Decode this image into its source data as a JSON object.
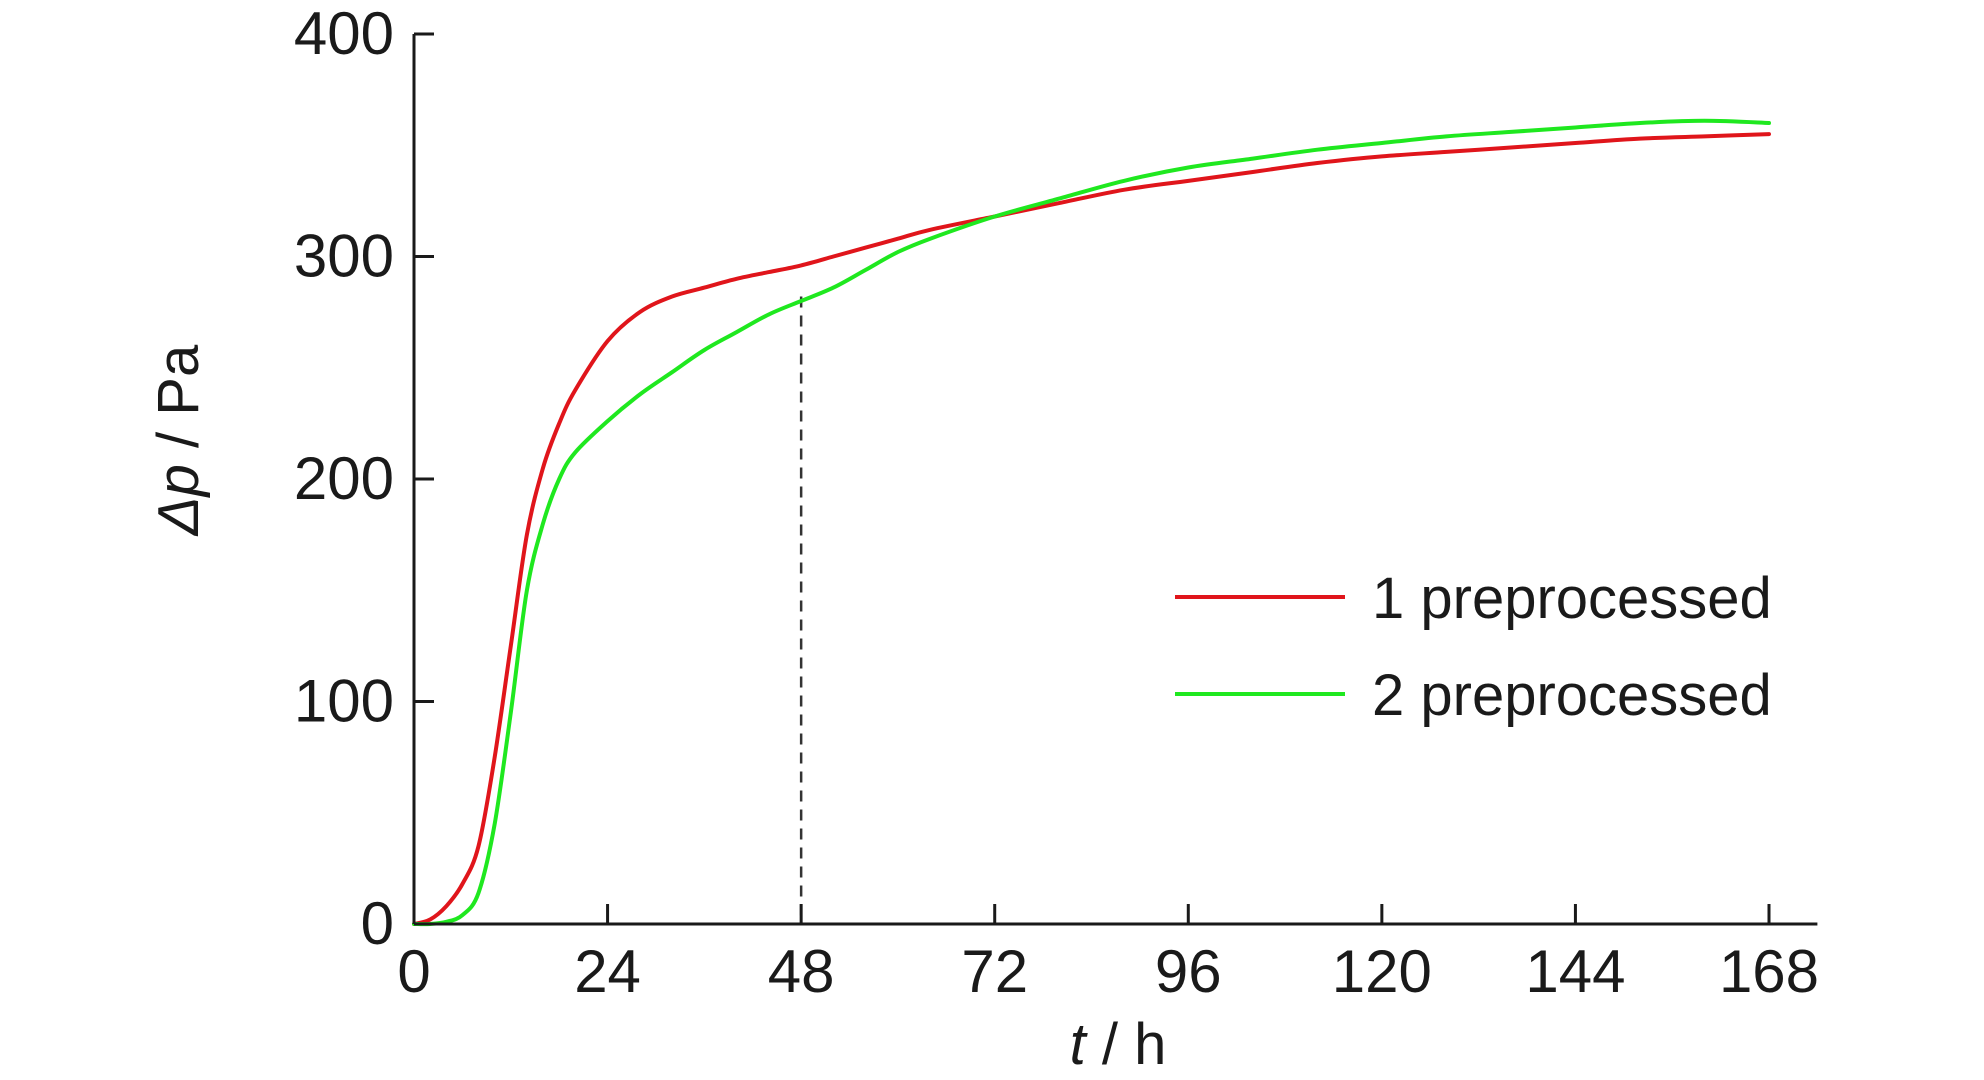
{
  "chart_data": {
    "type": "line",
    "xlabel": {
      "var": "t",
      "unit": " / h"
    },
    "ylabel": {
      "var": "Δp",
      "unit": " / Pa"
    },
    "xlim": [
      0,
      174
    ],
    "ylim": [
      0,
      400
    ],
    "xticks": [
      0,
      24,
      48,
      72,
      96,
      120,
      144,
      168
    ],
    "yticks": [
      0,
      100,
      200,
      300,
      400
    ],
    "grid": false,
    "legend_position": "right",
    "reference_line": {
      "x": 48,
      "y": 282
    },
    "series": [
      {
        "name": "1 preprocessed",
        "color": "#e0151b",
        "x": [
          0,
          2,
          4,
          6,
          8,
          10,
          12,
          14,
          16,
          18,
          20,
          24,
          28,
          32,
          36,
          40,
          44,
          48,
          52,
          56,
          60,
          64,
          72,
          80,
          88,
          96,
          104,
          112,
          120,
          128,
          136,
          144,
          152,
          160,
          168
        ],
        "y": [
          0,
          2,
          8,
          18,
          35,
          75,
          125,
          175,
          205,
          225,
          240,
          262,
          275,
          282,
          286,
          290,
          293,
          296,
          300,
          304,
          308,
          312,
          318,
          324,
          330,
          334,
          338,
          342,
          345,
          347,
          349,
          351,
          353,
          354,
          355
        ]
      },
      {
        "name": "2 preprocessed",
        "color": "#1fe81f",
        "x": [
          0,
          2,
          4,
          6,
          8,
          10,
          12,
          14,
          16,
          18,
          20,
          24,
          28,
          32,
          36,
          40,
          44,
          48,
          52,
          56,
          60,
          64,
          72,
          80,
          88,
          96,
          104,
          112,
          120,
          128,
          136,
          144,
          152,
          160,
          168
        ],
        "y": [
          0,
          0,
          1,
          4,
          14,
          45,
          95,
          150,
          180,
          200,
          212,
          226,
          238,
          248,
          258,
          266,
          274,
          280,
          286,
          294,
          302,
          308,
          318,
          326,
          334,
          340,
          344,
          348,
          351,
          354,
          356,
          358,
          360,
          361,
          360
        ]
      }
    ]
  }
}
